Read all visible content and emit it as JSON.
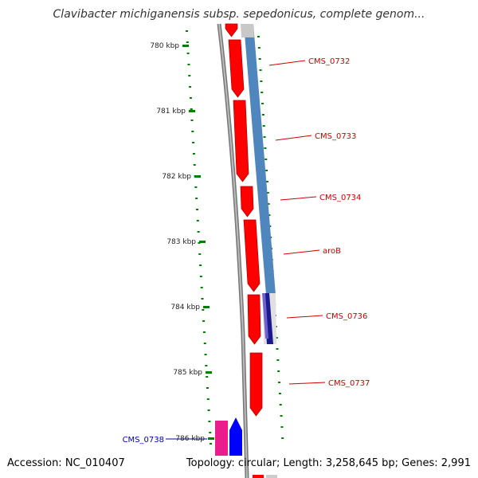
{
  "title": "Clavibacter michiganensis subsp. sepedonicus, complete genom...",
  "accession": "Accession: NC_010407",
  "summary": "Topology: circular; Length: 3,258,645 bp; Genes: 2,991",
  "colors": {
    "forward_gene": "#ff0000",
    "cds_blue": "#4f86bd",
    "reverse_gene": "#0000ff",
    "reverse_gene_alt": "#e91e8c",
    "label_red": "#cc0000",
    "label_blue": "#0000aa",
    "tick_green": "#008000",
    "backbone": "#777777"
  },
  "scale_ticks": [
    "780 kbp",
    "781 kbp",
    "782 kbp",
    "783 kbp",
    "784 kbp",
    "785 kbp",
    "786 kbp"
  ],
  "gene_labels": [
    {
      "name": "CMS_0732",
      "color": "red"
    },
    {
      "name": "CMS_0733",
      "color": "red"
    },
    {
      "name": "CMS_0734",
      "color": "red"
    },
    {
      "name": "aroB",
      "color": "red"
    },
    {
      "name": "CMS_0736",
      "color": "red"
    },
    {
      "name": "CMS_0737",
      "color": "red"
    },
    {
      "name": "CMS_0738",
      "color": "blue"
    }
  ]
}
